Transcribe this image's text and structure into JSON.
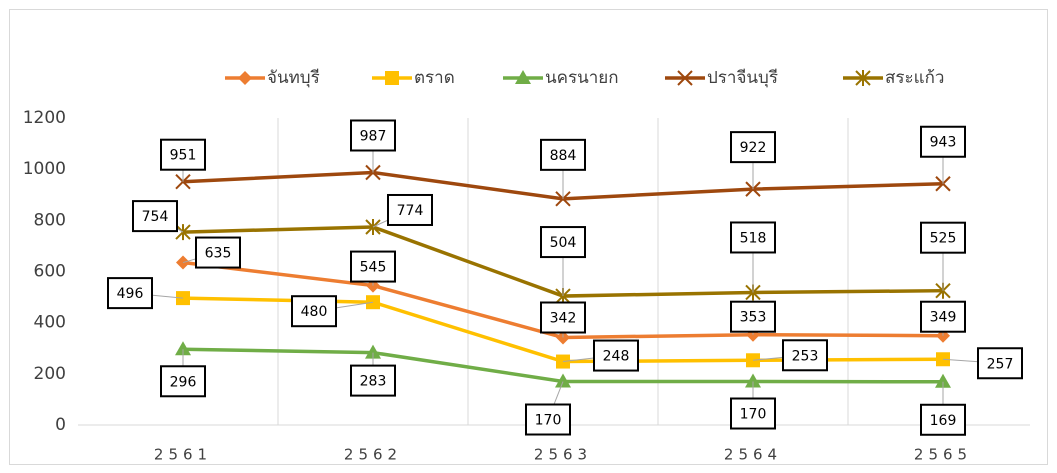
{
  "chart_data": {
    "type": "line",
    "categories": [
      "2561",
      "2562",
      "2563",
      "2564",
      "2565"
    ],
    "series": [
      {
        "name": "จันทบุรี",
        "color": "#ed7d31",
        "marker": "diamond",
        "values": [
          635,
          545,
          342,
          353,
          349
        ]
      },
      {
        "name": "ตราด",
        "color": "#ffc000",
        "marker": "square",
        "values": [
          496,
          480,
          248,
          253,
          257
        ]
      },
      {
        "name": "นครนายก",
        "color": "#70ad47",
        "marker": "triangle",
        "values": [
          296,
          283,
          170,
          170,
          169
        ]
      },
      {
        "name": "ปราจีนบุรี",
        "color": "#9e480e",
        "marker": "x",
        "values": [
          951,
          987,
          884,
          922,
          943
        ]
      },
      {
        "name": "สระแก้ว",
        "color": "#997300",
        "marker": "star",
        "values": [
          754,
          774,
          504,
          518,
          525
        ]
      }
    ],
    "ylim": [
      0,
      1200
    ],
    "yticks": [
      0,
      200,
      400,
      600,
      800,
      1000,
      1200
    ],
    "legend": "top",
    "grid": "x"
  }
}
